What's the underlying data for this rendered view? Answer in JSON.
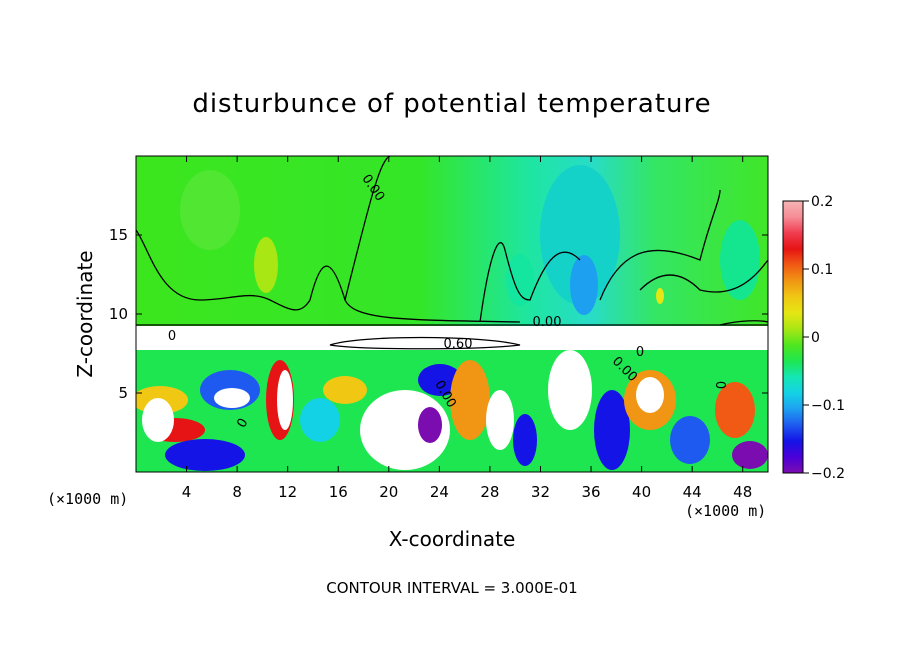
{
  "chart_data": {
    "type": "heatmap",
    "title": "disturbunce of potential temperature",
    "xlabel": "X-coordinate",
    "ylabel": "Z-coordinate",
    "x_unit": "(×1000 m)",
    "y_unit": "(×1000 m)",
    "xlim": [
      0,
      50
    ],
    "ylim": [
      0,
      20
    ],
    "x_ticks": [
      4,
      8,
      12,
      16,
      20,
      24,
      28,
      32,
      36,
      40,
      44,
      48
    ],
    "x_tick_labels": [
      "4",
      "8",
      "12",
      "16",
      "20",
      "24",
      "28",
      "32",
      "36",
      "40",
      "44",
      "48"
    ],
    "y_ticks": [
      5,
      10,
      15
    ],
    "y_tick_labels": [
      "5",
      "10",
      "15"
    ],
    "colorbar": {
      "range": [
        -0.2,
        0.2
      ],
      "ticks": [
        -0.2,
        -0.1,
        0,
        0.1,
        0.2
      ],
      "tick_labels": [
        "−0.2",
        "−0.1",
        "0",
        "0.1",
        "0.2"
      ],
      "colors": [
        "#7b0db0",
        "#4a00d8",
        "#1414e6",
        "#1e5af0",
        "#1ea0f0",
        "#14d2e6",
        "#14e6b4",
        "#1ee650",
        "#50e61e",
        "#a8e614",
        "#e6e614",
        "#f0c814",
        "#f09614",
        "#f05a14",
        "#e61414",
        "#f03c50",
        "#f58c96",
        "#f5b4b4"
      ]
    },
    "contour_labels": [
      "0.00",
      "0.00",
      "0.60",
      "0.00",
      "0.00",
      "0",
      "0",
      "0",
      "0"
    ],
    "footer": "CONTOUR INTERVAL = 3.000E-01"
  }
}
